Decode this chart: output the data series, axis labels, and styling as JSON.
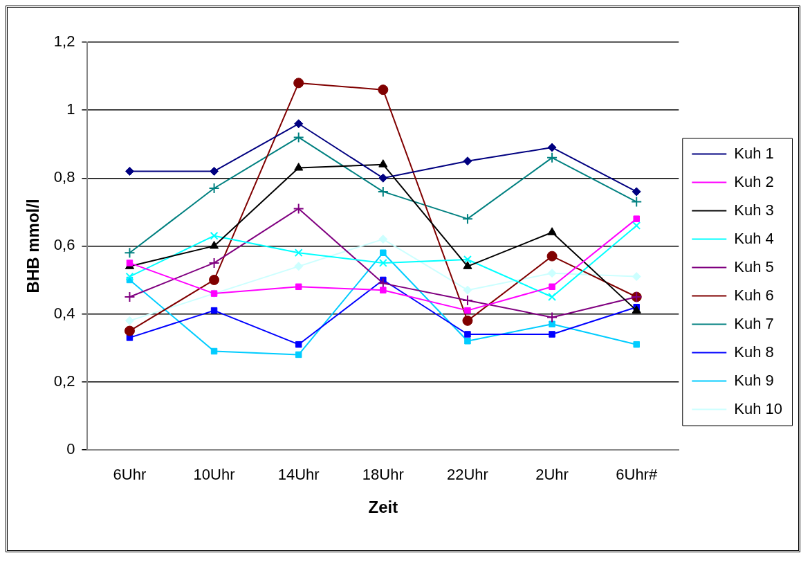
{
  "chart_data": {
    "type": "line",
    "xlabel": "Zeit",
    "ylabel": "BHB mmol/l",
    "categories": [
      "6Uhr",
      "10Uhr",
      "14Uhr",
      "18Uhr",
      "22Uhr",
      "2Uhr",
      "6Uhr#"
    ],
    "ylim": [
      0,
      1.2
    ],
    "yticks": [
      0,
      {
        "value": 0.2,
        "label": "0,2"
      },
      {
        "value": 0.4,
        "label": "0,4"
      },
      {
        "value": 0.6,
        "label": "0,6"
      },
      {
        "value": 0.8,
        "label": "0,8"
      },
      1,
      {
        "value": 1.2,
        "label": "1,2"
      }
    ],
    "grid": "y",
    "legend": "right",
    "line_style": "solid",
    "series": [
      {
        "name": "Kuh 1",
        "color": "#000080",
        "marker": "diamond",
        "values": [
          0.82,
          0.82,
          0.96,
          0.8,
          0.85,
          0.89,
          0.76
        ]
      },
      {
        "name": "Kuh 2",
        "color": "#ff00ff",
        "marker": "square",
        "values": [
          0.55,
          0.46,
          0.48,
          0.47,
          0.41,
          0.48,
          0.68
        ]
      },
      {
        "name": "Kuh 3",
        "color": "#000000",
        "marker": "triangle",
        "values": [
          0.54,
          0.6,
          0.83,
          0.84,
          0.54,
          0.64,
          0.41
        ]
      },
      {
        "name": "Kuh 4",
        "color": "#00ffff",
        "marker": "x",
        "values": [
          0.51,
          0.63,
          0.58,
          0.55,
          0.56,
          0.45,
          0.66
        ]
      },
      {
        "name": "Kuh 5",
        "color": "#800080",
        "marker": "cross",
        "values": [
          0.45,
          0.55,
          0.71,
          0.49,
          0.44,
          0.39,
          0.45
        ]
      },
      {
        "name": "Kuh 6",
        "color": "#800000",
        "marker": "circle",
        "values": [
          0.35,
          0.5,
          1.08,
          1.06,
          0.38,
          0.57,
          0.45
        ]
      },
      {
        "name": "Kuh 7",
        "color": "#008080",
        "marker": "cross",
        "values": [
          0.58,
          0.77,
          0.92,
          0.76,
          0.68,
          0.86,
          0.73
        ]
      },
      {
        "name": "Kuh 8",
        "color": "#0000ff",
        "marker": "square",
        "values": [
          0.33,
          0.41,
          0.31,
          0.5,
          0.34,
          0.34,
          0.42
        ]
      },
      {
        "name": "Kuh 9",
        "color": "#00ccff",
        "marker": "square",
        "values": [
          0.5,
          0.29,
          0.28,
          0.58,
          0.32,
          0.37,
          0.31
        ]
      },
      {
        "name": "Kuh 10",
        "color": "#ccffff",
        "marker": "diamond",
        "values": [
          0.38,
          0.46,
          0.54,
          0.62,
          0.47,
          0.52,
          0.51
        ]
      }
    ]
  }
}
